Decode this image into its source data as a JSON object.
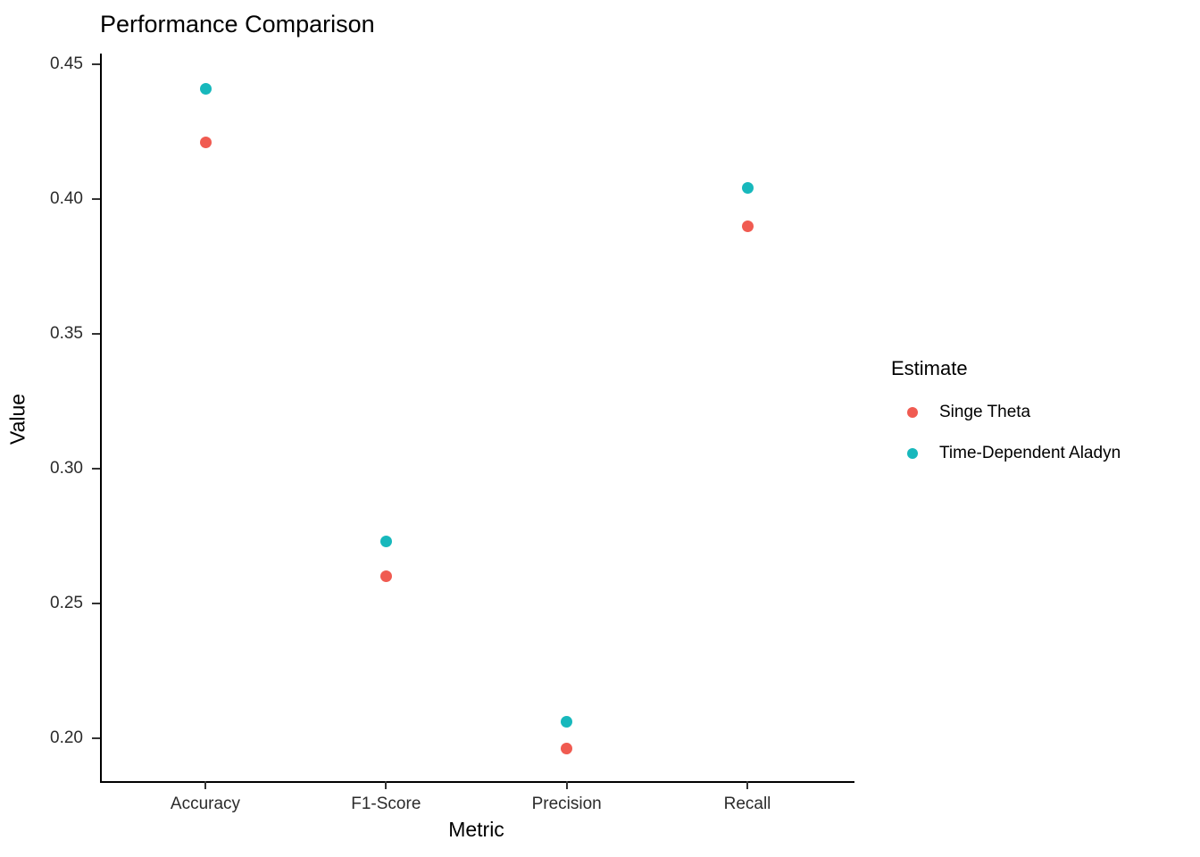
{
  "chart_data": {
    "type": "scatter",
    "title": "Performance Comparison",
    "xlabel": "Metric",
    "ylabel": "Value",
    "categories": [
      "Accuracy",
      "F1-Score",
      "Precision",
      "Recall"
    ],
    "series": [
      {
        "name": "Singe Theta",
        "color": "#F05B51",
        "values": [
          0.421,
          0.26,
          0.196,
          0.39
        ]
      },
      {
        "name": "Time-Dependent Aladyn",
        "color": "#17B8BC",
        "values": [
          0.441,
          0.273,
          0.206,
          0.404
        ]
      }
    ],
    "yticks": [
      "0.20",
      "0.25",
      "0.30",
      "0.35",
      "0.40",
      "0.45"
    ],
    "ylim": [
      0.184,
      0.454
    ],
    "legend_title": "Estimate",
    "legend_position": "right",
    "grid": false,
    "axis_color": "#000000",
    "tick_color": "#333333"
  }
}
